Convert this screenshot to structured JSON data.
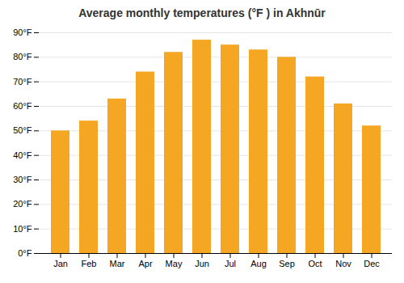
{
  "chart_data": {
    "type": "bar",
    "title": "Average monthly temperatures (°F ) in Akhnūr",
    "categories": [
      "Jan",
      "Feb",
      "Mar",
      "Apr",
      "May",
      "Jun",
      "Jul",
      "Aug",
      "Sep",
      "Oct",
      "Nov",
      "Dec"
    ],
    "values": [
      50,
      54,
      63,
      74,
      82,
      87,
      85,
      83,
      80,
      72,
      61,
      52
    ],
    "color": "#F5A623",
    "ylim": [
      0,
      90
    ],
    "yticks": [
      {
        "value": 0,
        "label": "0°F"
      },
      {
        "value": 10,
        "label": "10°F"
      },
      {
        "value": 20,
        "label": "20°F"
      },
      {
        "value": 30,
        "label": "30°F"
      },
      {
        "value": 40,
        "label": "40°F"
      },
      {
        "value": 50,
        "label": "50°F"
      },
      {
        "value": 60,
        "label": "60°F"
      },
      {
        "value": 70,
        "label": "70°F"
      },
      {
        "value": 80,
        "label": "80°F"
      },
      {
        "value": 90,
        "label": "90°F"
      }
    ],
    "grid": true
  }
}
